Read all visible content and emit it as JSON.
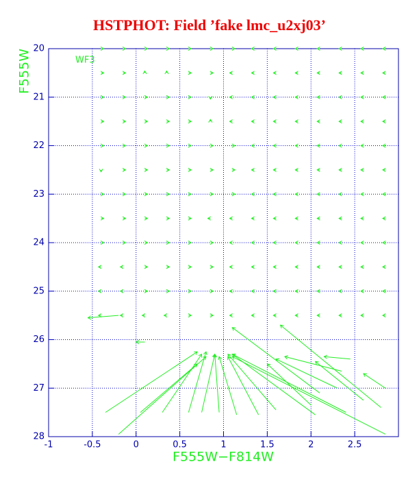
{
  "chart_data": {
    "type": "quiver",
    "title": "HSTPHOT: Field ’fake lmc_u2xj03’",
    "xlabel": "F555W−F814W",
    "ylabel": "F555W",
    "annotation": "WF3",
    "xlim": [
      -1,
      3
    ],
    "ylim": [
      20,
      28
    ],
    "y_inverted": true,
    "xticks": [
      -1,
      -0.5,
      0,
      0.5,
      1,
      1.5,
      2,
      2.5
    ],
    "yticks": [
      20,
      21,
      22,
      23,
      24,
      25,
      26,
      27,
      28
    ],
    "grid": true,
    "color": "#22ee22",
    "x": [
      -0.4,
      -0.15,
      0.1,
      0.35,
      0.6,
      0.85,
      1.1,
      1.35,
      1.6,
      1.85,
      2.1,
      2.35,
      2.6,
      2.85,
      -0.4,
      -0.15,
      0.1,
      0.35,
      0.6,
      0.85,
      1.1,
      1.35,
      1.6,
      1.85,
      2.1,
      2.35,
      2.6,
      2.85,
      -0.4,
      -0.15,
      0.1,
      0.35,
      0.6,
      0.85,
      1.1,
      1.35,
      1.6,
      1.85,
      2.1,
      2.35,
      2.6,
      2.85,
      -0.4,
      -0.15,
      0.1,
      0.35,
      0.6,
      0.85,
      1.1,
      1.35,
      1.6,
      1.85,
      2.1,
      2.35,
      2.6,
      2.85,
      -0.4,
      -0.15,
      0.1,
      0.35,
      0.6,
      0.85,
      1.1,
      1.35,
      1.6,
      1.85,
      2.1,
      2.35,
      2.6,
      2.85,
      -0.4,
      -0.15,
      0.1,
      0.35,
      0.6,
      0.85,
      1.1,
      1.35,
      1.6,
      1.85,
      2.1,
      2.35,
      2.6,
      2.85,
      -0.4,
      -0.15,
      0.1,
      0.35,
      0.6,
      0.85,
      1.1,
      1.35,
      1.6,
      1.85,
      2.1,
      2.35,
      2.6,
      2.85,
      -0.4,
      -0.15,
      0.1,
      0.35,
      0.6,
      0.85,
      1.1,
      1.35,
      1.6,
      1.85,
      2.1,
      2.35,
      2.6,
      2.85,
      -0.4,
      -0.15,
      0.1,
      0.35,
      0.6,
      0.85,
      1.1,
      1.35,
      1.6,
      1.85,
      2.1,
      2.35,
      2.6,
      2.85,
      -0.4,
      -0.15,
      0.1,
      0.35,
      0.6,
      0.85,
      1.1,
      1.35,
      1.6,
      1.85,
      2.1,
      2.35,
      2.6,
      2.85,
      -0.4,
      -0.15,
      0.1,
      0.35,
      0.6,
      0.85,
      1.1,
      1.35,
      1.6,
      1.85,
      2.1,
      2.35,
      2.6,
      2.85,
      -0.4,
      -0.15,
      0.1,
      0.35,
      0.6,
      0.85,
      1.1,
      1.35,
      1.6,
      1.85,
      2.1,
      2.35,
      2.6,
      2.85,
      -0.35,
      -0.2,
      0.05,
      0.3,
      0.6,
      0.75,
      0.95,
      1.15,
      1.4,
      1.6,
      2.05,
      2.4,
      2.85,
      2.85,
      2.45,
      2.6,
      2.3,
      2.0,
      2.35,
      2.8,
      2.1,
      -0.2,
      0.1
    ],
    "y": [
      20,
      20,
      20,
      20,
      20,
      20,
      20,
      20,
      20,
      20,
      20,
      20,
      20,
      20,
      20.5,
      20.5,
      20.5,
      20.5,
      20.5,
      20.5,
      20.5,
      20.5,
      20.5,
      20.5,
      20.5,
      20.5,
      20.5,
      20.5,
      21,
      21,
      21,
      21,
      21,
      21,
      21,
      21,
      21,
      21,
      21,
      21,
      21,
      21,
      21.5,
      21.5,
      21.5,
      21.5,
      21.5,
      21.5,
      21.5,
      21.5,
      21.5,
      21.5,
      21.5,
      21.5,
      21.5,
      21.5,
      22,
      22,
      22,
      22,
      22,
      22,
      22,
      22,
      22,
      22,
      22,
      22,
      22,
      22,
      22.5,
      22.5,
      22.5,
      22.5,
      22.5,
      22.5,
      22.5,
      22.5,
      22.5,
      22.5,
      22.5,
      22.5,
      22.5,
      22.5,
      23,
      23,
      23,
      23,
      23,
      23,
      23,
      23,
      23,
      23,
      23,
      23,
      23,
      23,
      23.5,
      23.5,
      23.5,
      23.5,
      23.5,
      23.5,
      23.5,
      23.5,
      23.5,
      23.5,
      23.5,
      23.5,
      23.5,
      23.5,
      24,
      24,
      24,
      24,
      24,
      24,
      24,
      24,
      24,
      24,
      24,
      24,
      24,
      24,
      24.5,
      24.5,
      24.5,
      24.5,
      24.5,
      24.5,
      24.5,
      24.5,
      24.5,
      24.5,
      24.5,
      24.5,
      24.5,
      24.5,
      25,
      25,
      25,
      25,
      25,
      25,
      25,
      25,
      25,
      25,
      25,
      25,
      25,
      25,
      25.5,
      25.5,
      25.5,
      25.5,
      25.5,
      25.5,
      25.5,
      25.5,
      25.5,
      25.5,
      25.5,
      25.5,
      25.5,
      25.5,
      27.5,
      27.95,
      27.5,
      27.5,
      27.5,
      27.5,
      27.5,
      27.55,
      27.55,
      27.45,
      27.55,
      27.5,
      27.95,
      27.0,
      26.4,
      27.25,
      27.0,
      27.35,
      26.65,
      27.4,
      27.1,
      25.5,
      26.05
    ],
    "dx": [
      0.03,
      0.03,
      0.03,
      0.03,
      0.03,
      0.03,
      0.03,
      -0.03,
      -0.03,
      -0.03,
      -0.03,
      -0.03,
      -0.03,
      -0.03,
      0.03,
      0.03,
      0,
      0,
      0.03,
      0.03,
      -0.03,
      -0.03,
      -0.03,
      -0.03,
      -0.03,
      -0.03,
      -0.03,
      -0.03,
      0.03,
      0.03,
      0.03,
      0.03,
      0.03,
      0,
      -0.03,
      -0.03,
      -0.03,
      -0.03,
      -0.03,
      -0.03,
      -0.03,
      -0.03,
      0.03,
      0.03,
      0.03,
      0.03,
      0.03,
      0,
      -0.03,
      -0.03,
      -0.03,
      -0.03,
      -0.03,
      -0.03,
      -0.03,
      -0.03,
      0.03,
      0.03,
      0.03,
      0.03,
      0.03,
      0.03,
      0.03,
      -0.03,
      -0.03,
      -0.03,
      -0.03,
      -0.03,
      -0.03,
      -0.03,
      0,
      0.03,
      0.03,
      0.03,
      0.03,
      0.03,
      0.03,
      -0.03,
      -0.03,
      -0.03,
      -0.03,
      -0.03,
      -0.03,
      -0.03,
      0.03,
      0.03,
      0.03,
      0.03,
      0.03,
      0.03,
      0.03,
      -0.03,
      -0.03,
      -0.03,
      -0.03,
      -0.03,
      -0.03,
      -0.03,
      0.03,
      0.03,
      0.03,
      0.03,
      0.03,
      -0.03,
      -0.03,
      -0.03,
      -0.03,
      -0.03,
      -0.03,
      -0.03,
      -0.03,
      -0.03,
      0.03,
      0.03,
      0.03,
      0.03,
      0.03,
      0.03,
      -0.03,
      -0.03,
      -0.03,
      -0.03,
      -0.03,
      -0.03,
      -0.03,
      -0.03,
      -0.03,
      -0.03,
      0.03,
      0.03,
      0.03,
      0.03,
      -0.03,
      -0.03,
      -0.03,
      -0.03,
      -0.03,
      -0.03,
      -0.03,
      -0.03,
      -0.03,
      -0.03,
      0.03,
      0.03,
      0.03,
      0.03,
      -0.03,
      -0.03,
      -0.03,
      -0.03,
      -0.03,
      -0.03,
      -0.03,
      -0.03,
      -0.03,
      -0.03,
      -0.03,
      -0.03,
      0.03,
      0.03,
      -0.03,
      -0.03,
      -0.03,
      -0.03,
      -0.03,
      -0.03,
      -0.03,
      -0.03,
      1.05,
      1.0,
      0.65,
      0.45,
      0.2,
      0.15,
      -0.05,
      -0.2,
      -0.35,
      -0.55,
      -0.95,
      -1.3,
      -1.75,
      -0.25,
      -0.3,
      -0.55,
      -0.7,
      -0.5,
      -0.65,
      -1.15,
      -1.0,
      -0.35,
      -0.1
    ],
    "dy": [
      0,
      0,
      0,
      0,
      0,
      0,
      0,
      0,
      0,
      0,
      0,
      0,
      0,
      0,
      0,
      0,
      -0.04,
      -0.04,
      0,
      0,
      0,
      0,
      0,
      0,
      0,
      0,
      0,
      0,
      0,
      0,
      0,
      0,
      0,
      0.04,
      0,
      0,
      0,
      0,
      0,
      0,
      0,
      0,
      0,
      0,
      0,
      0,
      0,
      -0.04,
      0,
      0,
      0,
      0,
      0,
      0,
      0,
      0,
      0,
      0,
      0,
      0,
      0,
      0,
      0,
      0,
      0,
      0,
      0,
      0,
      0,
      0,
      0.04,
      0,
      0,
      0,
      0,
      0,
      0,
      0,
      0,
      0,
      0,
      0,
      0,
      0,
      0,
      0,
      0,
      0,
      0,
      0,
      0,
      0,
      0,
      0,
      0,
      0,
      0,
      0,
      0,
      0,
      0,
      0,
      0,
      0,
      0,
      0,
      0,
      0,
      0,
      0,
      0,
      0,
      0,
      0,
      0,
      0,
      0,
      0,
      0,
      0,
      0,
      0,
      0,
      0,
      0,
      0,
      0,
      0,
      0,
      0,
      0,
      0,
      0,
      0,
      0,
      0,
      0,
      0,
      0,
      0,
      0,
      0,
      0,
      0,
      0,
      0,
      0,
      0,
      0,
      0,
      0,
      0,
      0,
      0,
      0,
      0,
      0,
      0,
      0,
      0,
      0,
      0,
      0,
      0,
      0,
      0,
      0,
      0,
      -1.25,
      -1.6,
      -1.0,
      -1.2,
      -1.25,
      -1.2,
      -1.2,
      -1.2,
      -1.2,
      -1.15,
      -1.25,
      -1.2,
      -1.6,
      -0.3,
      -0.05,
      -0.8,
      -0.6,
      -0.85,
      -0.3,
      -1.7,
      -1.35,
      0.05,
      0
    ]
  }
}
